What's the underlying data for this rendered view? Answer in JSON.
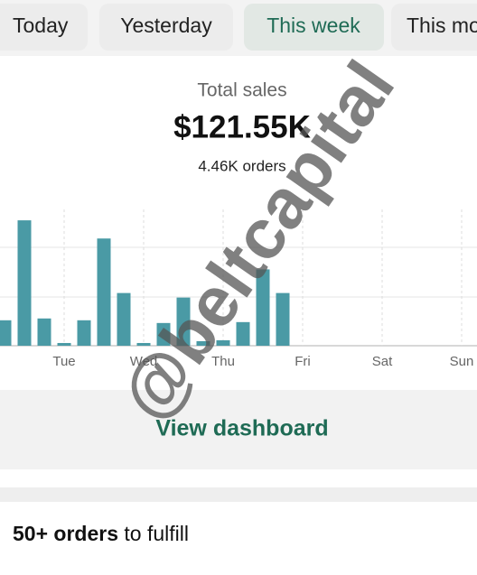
{
  "tabs": [
    "Today",
    "Yesterday",
    "This week",
    "This month"
  ],
  "summary": {
    "label": "Total sales",
    "value": "$121.55K",
    "orders": "4.46K orders"
  },
  "chart_data": {
    "type": "bar",
    "color": "#4a9aa5",
    "categories": [
      null,
      null,
      null,
      "Tue",
      null,
      null,
      null,
      "Wed",
      null,
      null,
      null,
      "Thu",
      null,
      null,
      null,
      "Fri",
      null,
      null,
      null,
      "Sat",
      null,
      null,
      null,
      "Sun"
    ],
    "values": [
      28,
      138,
      30,
      3,
      28,
      118,
      58,
      3,
      25,
      53,
      5,
      6,
      26,
      84,
      58,
      null,
      null,
      null,
      null,
      null,
      null,
      null,
      null,
      null
    ],
    "ylim": [
      0,
      150
    ]
  },
  "link": "View dashboard",
  "fulfill": {
    "count": "50+ orders",
    "text": "to fulfill"
  },
  "watermark": "@beltcapital"
}
